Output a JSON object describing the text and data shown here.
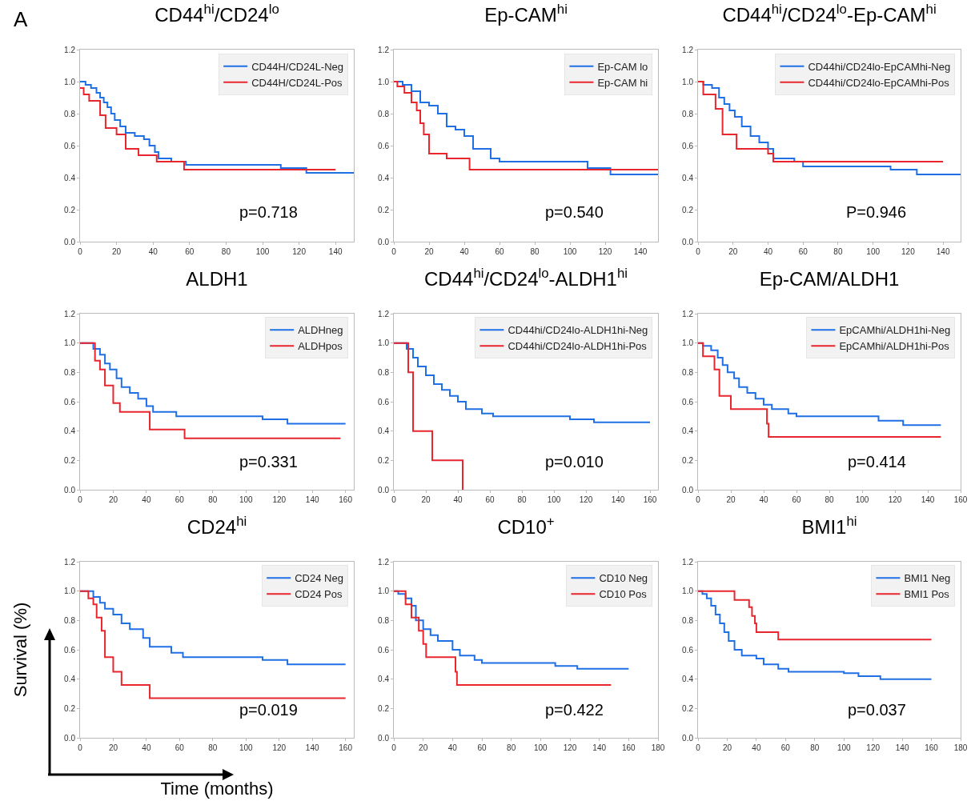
{
  "chart_data": [
    {
      "type": "step",
      "title": "CD44$^{hi}$/CD24$^{lo}$",
      "annotations": [
        "A",
        "p=0.718"
      ],
      "xlim": [
        0,
        150
      ],
      "xticks": [
        0,
        20,
        40,
        60,
        80,
        100,
        120,
        140
      ],
      "ylim": [
        0,
        1.2
      ],
      "yticks": [
        {
          "value": 0,
          "label": "0.0"
        },
        {
          "value": 0.2,
          "label": "0.2"
        },
        {
          "value": 0.4,
          "label": "0.4"
        },
        {
          "value": 0.6,
          "label": "0.6"
        },
        {
          "value": 0.8,
          "label": "0.8"
        },
        {
          "value": 1,
          "label": "1.0"
        },
        {
          "value": 1.2,
          "label": "1.2"
        }
      ],
      "grid": false,
      "legend": "top right",
      "series": [
        {
          "name": "CD44H/CD24L-Neg",
          "color": "#1f6fe5",
          "x": [
            0,
            3,
            6,
            9,
            11,
            13,
            15,
            17,
            19,
            22,
            25,
            30,
            35,
            38,
            41,
            43,
            50,
            58,
            110,
            124,
            150
          ],
          "values": [
            1.0,
            0.98,
            0.96,
            0.93,
            0.9,
            0.87,
            0.84,
            0.8,
            0.76,
            0.72,
            0.68,
            0.66,
            0.64,
            0.6,
            0.56,
            0.52,
            0.5,
            0.48,
            0.46,
            0.43,
            0.43
          ]
        },
        {
          "name": "CD44H/CD24L-Pos",
          "color": "#e8262e",
          "x": [
            0,
            2,
            5,
            11,
            14,
            20,
            25,
            32,
            42,
            57,
            140
          ],
          "values": [
            0.96,
            0.92,
            0.88,
            0.79,
            0.71,
            0.67,
            0.58,
            0.54,
            0.5,
            0.45,
            0.45
          ]
        }
      ]
    },
    {
      "type": "step",
      "title": "Ep-CAM$^{hi}$",
      "annotations": [
        "p=0.540"
      ],
      "xlim": [
        0,
        150
      ],
      "xticks": [
        0,
        20,
        40,
        60,
        80,
        100,
        120,
        140
      ],
      "ylim": [
        0,
        1.2
      ],
      "yticks": [
        {
          "value": 0,
          "label": "0.0"
        },
        {
          "value": 0.2,
          "label": "0.2"
        },
        {
          "value": 0.4,
          "label": "0.4"
        },
        {
          "value": 0.6,
          "label": "0.6"
        },
        {
          "value": 0.8,
          "label": "0.8"
        },
        {
          "value": 1,
          "label": "1.0"
        },
        {
          "value": 1.2,
          "label": "1.2"
        }
      ],
      "grid": false,
      "legend": "top right",
      "series": [
        {
          "name": "Ep-CAM lo",
          "color": "#1f6fe5",
          "x": [
            0,
            5,
            10,
            15,
            20,
            25,
            30,
            35,
            40,
            45,
            55,
            60,
            110,
            123,
            150
          ],
          "values": [
            1.0,
            0.98,
            0.94,
            0.87,
            0.85,
            0.8,
            0.72,
            0.7,
            0.66,
            0.58,
            0.52,
            0.5,
            0.46,
            0.42,
            0.42
          ]
        },
        {
          "name": "Ep-CAM hi",
          "color": "#e8262e",
          "x": [
            0,
            2,
            6,
            10,
            13,
            15,
            17,
            20,
            30,
            43,
            150
          ],
          "values": [
            1.0,
            0.97,
            0.93,
            0.87,
            0.82,
            0.74,
            0.67,
            0.55,
            0.52,
            0.45,
            0.45
          ]
        }
      ]
    },
    {
      "type": "step",
      "title": "CD44$^{hi}$/CD24$^{lo}$-Ep-CAM$^{hi}$",
      "annotations": [
        "P=0.946"
      ],
      "xlim": [
        0,
        150
      ],
      "xticks": [
        0,
        20,
        40,
        60,
        80,
        100,
        120,
        140
      ],
      "ylim": [
        0,
        1.2
      ],
      "yticks": [
        {
          "value": 0,
          "label": "0.0"
        },
        {
          "value": 0.2,
          "label": "0.2"
        },
        {
          "value": 0.4,
          "label": "0.4"
        },
        {
          "value": 0.6,
          "label": "0.6"
        },
        {
          "value": 0.8,
          "label": "0.8"
        },
        {
          "value": 1,
          "label": "1.0"
        },
        {
          "value": 1.2,
          "label": "1.2"
        }
      ],
      "grid": false,
      "legend": "top right",
      "series": [
        {
          "name": "CD44hi/CD24lo-EpCAMhi-Neg",
          "color": "#1f6fe5",
          "x": [
            0,
            3,
            8,
            12,
            15,
            18,
            21,
            25,
            30,
            35,
            40,
            43,
            55,
            60,
            110,
            125,
            150
          ],
          "values": [
            1.0,
            0.98,
            0.96,
            0.9,
            0.86,
            0.82,
            0.78,
            0.72,
            0.66,
            0.62,
            0.58,
            0.52,
            0.5,
            0.47,
            0.45,
            0.42,
            0.42
          ]
        },
        {
          "name": "CD44hi/CD24lo-EpCAMhi-Pos",
          "color": "#e8262e",
          "x": [
            0,
            3,
            10,
            14,
            22,
            40,
            43,
            140
          ],
          "values": [
            1.0,
            0.92,
            0.83,
            0.67,
            0.58,
            0.55,
            0.5,
            0.5
          ]
        }
      ]
    },
    {
      "type": "step",
      "title": "ALDH1",
      "annotations": [
        "p=0.331"
      ],
      "xlim": [
        0,
        165
      ],
      "xticks": [
        0,
        20,
        40,
        60,
        80,
        100,
        120,
        140,
        160
      ],
      "ylim": [
        0,
        1.2
      ],
      "yticks": [
        {
          "value": 0,
          "label": "0.0"
        },
        {
          "value": 0.2,
          "label": "0.2"
        },
        {
          "value": 0.4,
          "label": "0.4"
        },
        {
          "value": 0.6,
          "label": "0.6"
        },
        {
          "value": 0.8,
          "label": "0.8"
        },
        {
          "value": 1,
          "label": "1.0"
        },
        {
          "value": 1.2,
          "label": "1.2"
        }
      ],
      "grid": false,
      "legend": "top right",
      "series": [
        {
          "name": "ALDHneg",
          "color": "#1f6fe5",
          "x": [
            0,
            8,
            12,
            15,
            18,
            22,
            25,
            30,
            35,
            40,
            44,
            58,
            110,
            125,
            160
          ],
          "values": [
            1.0,
            0.96,
            0.92,
            0.86,
            0.82,
            0.76,
            0.7,
            0.66,
            0.62,
            0.57,
            0.53,
            0.5,
            0.48,
            0.45,
            0.45
          ]
        },
        {
          "name": "ALDHpos",
          "color": "#e8262e",
          "x": [
            0,
            9,
            12,
            15,
            20,
            24,
            42,
            63,
            157
          ],
          "values": [
            1.0,
            0.88,
            0.82,
            0.71,
            0.59,
            0.53,
            0.41,
            0.35,
            0.35
          ]
        }
      ]
    },
    {
      "type": "step",
      "title": "CD44$^{hi}$/CD24$^{lo}$-ALDH1$^{hi}$",
      "annotations": [
        "p=0.010"
      ],
      "xlim": [
        0,
        165
      ],
      "xticks": [
        0,
        20,
        40,
        60,
        80,
        100,
        120,
        140,
        160
      ],
      "ylim": [
        0,
        1.2
      ],
      "yticks": [
        {
          "value": 0,
          "label": "0.0"
        },
        {
          "value": 0.2,
          "label": "0.2"
        },
        {
          "value": 0.4,
          "label": "0.4"
        },
        {
          "value": 0.6,
          "label": "0.6"
        },
        {
          "value": 0.8,
          "label": "0.8"
        },
        {
          "value": 1,
          "label": "1.0"
        },
        {
          "value": 1.2,
          "label": "1.2"
        }
      ],
      "grid": false,
      "legend": "top right",
      "series": [
        {
          "name": "CD44hi/CD24lo-ALDH1hi-Neg",
          "color": "#1f6fe5",
          "x": [
            0,
            8,
            12,
            15,
            20,
            25,
            30,
            35,
            40,
            45,
            55,
            62,
            110,
            125,
            160
          ],
          "values": [
            1.0,
            0.96,
            0.9,
            0.84,
            0.78,
            0.72,
            0.68,
            0.64,
            0.6,
            0.55,
            0.52,
            0.5,
            0.48,
            0.46,
            0.46
          ]
        },
        {
          "name": "CD44hi/CD24lo-ALDH1hi-Pos",
          "color": "#e8262e",
          "x": [
            0,
            9,
            12,
            24,
            43
          ],
          "values": [
            1.0,
            0.8,
            0.4,
            0.2,
            0.0
          ]
        }
      ]
    },
    {
      "type": "step",
      "title": "Ep-CAM/ALDH1",
      "annotations": [
        "p=0.414"
      ],
      "xlim": [
        0,
        160
      ],
      "xticks": [
        0,
        20,
        40,
        60,
        80,
        100,
        120,
        140,
        160
      ],
      "ylim": [
        0,
        1.2
      ],
      "yticks": [
        {
          "value": 0,
          "label": "0.0"
        },
        {
          "value": 0.2,
          "label": "0.2"
        },
        {
          "value": 0.4,
          "label": "0.4"
        },
        {
          "value": 0.6,
          "label": "0.6"
        },
        {
          "value": 0.8,
          "label": "0.8"
        },
        {
          "value": 1,
          "label": "1.0"
        },
        {
          "value": 1.2,
          "label": "1.2"
        }
      ],
      "grid": false,
      "legend": "top right",
      "series": [
        {
          "name": "EpCAMhi/ALDH1hi-Neg",
          "color": "#1f6fe5",
          "x": [
            0,
            3,
            8,
            12,
            15,
            18,
            22,
            25,
            30,
            35,
            40,
            45,
            55,
            60,
            110,
            125,
            148
          ],
          "values": [
            1.0,
            0.98,
            0.95,
            0.9,
            0.85,
            0.8,
            0.76,
            0.7,
            0.66,
            0.62,
            0.58,
            0.55,
            0.52,
            0.5,
            0.47,
            0.44,
            0.44
          ]
        },
        {
          "name": "EpCAMhi/ALDH1hi-Pos",
          "color": "#e8262e",
          "x": [
            0,
            3,
            10,
            13,
            20,
            42,
            43,
            148
          ],
          "values": [
            1.0,
            0.91,
            0.82,
            0.64,
            0.55,
            0.45,
            0.36,
            0.36
          ]
        }
      ]
    },
    {
      "type": "step",
      "title": "CD24$^{hi}$",
      "xlabel": "Time (months)",
      "ylabel": "Survival (%)",
      "annotations": [
        "p=0.019"
      ],
      "xlim": [
        0,
        165
      ],
      "xticks": [
        0,
        20,
        40,
        60,
        80,
        100,
        120,
        140,
        160
      ],
      "ylim": [
        0,
        1.2
      ],
      "yticks": [
        {
          "value": 0,
          "label": "0.0"
        },
        {
          "value": 0.2,
          "label": "0.2"
        },
        {
          "value": 0.4,
          "label": "0.4"
        },
        {
          "value": 0.6,
          "label": "0.6"
        },
        {
          "value": 0.8,
          "label": "0.8"
        },
        {
          "value": 1,
          "label": "1.0"
        },
        {
          "value": 1.2,
          "label": "1.2"
        }
      ],
      "grid": false,
      "legend": "top right",
      "series": [
        {
          "name": "CD24 Neg",
          "color": "#1f6fe5",
          "x": [
            0,
            8,
            12,
            15,
            20,
            25,
            30,
            38,
            42,
            55,
            62,
            110,
            125,
            160
          ],
          "values": [
            1.0,
            0.96,
            0.92,
            0.88,
            0.84,
            0.78,
            0.74,
            0.68,
            0.62,
            0.58,
            0.55,
            0.53,
            0.5,
            0.5
          ]
        },
        {
          "name": "CD24 Pos",
          "color": "#e8262e",
          "x": [
            0,
            5,
            8,
            10,
            13,
            15,
            20,
            25,
            42,
            160
          ],
          "values": [
            1.0,
            0.95,
            0.91,
            0.82,
            0.73,
            0.55,
            0.45,
            0.36,
            0.27,
            0.27
          ]
        }
      ]
    },
    {
      "type": "step",
      "title": "CD10$^{+}$",
      "annotations": [
        "p=0.422"
      ],
      "xlim": [
        0,
        180
      ],
      "xticks": [
        0,
        20,
        40,
        60,
        80,
        100,
        120,
        140,
        160,
        180
      ],
      "ylim": [
        0,
        1.2
      ],
      "yticks": [
        {
          "value": 0,
          "label": "0.0"
        },
        {
          "value": 0.2,
          "label": "0.2"
        },
        {
          "value": 0.4,
          "label": "0.4"
        },
        {
          "value": 0.6,
          "label": "0.6"
        },
        {
          "value": 0.8,
          "label": "0.8"
        },
        {
          "value": 1,
          "label": "1.0"
        },
        {
          "value": 1.2,
          "label": "1.2"
        }
      ],
      "grid": false,
      "legend": "top right",
      "series": [
        {
          "name": "CD10 Neg",
          "color": "#1f6fe5",
          "x": [
            0,
            3,
            8,
            12,
            15,
            20,
            25,
            30,
            40,
            45,
            55,
            60,
            110,
            125,
            160
          ],
          "values": [
            1.0,
            0.98,
            0.95,
            0.9,
            0.8,
            0.74,
            0.7,
            0.66,
            0.6,
            0.56,
            0.53,
            0.51,
            0.49,
            0.47,
            0.47
          ]
        },
        {
          "name": "CD10 Pos",
          "color": "#e8262e",
          "x": [
            0,
            8,
            12,
            17,
            20,
            22,
            42,
            43,
            148
          ],
          "values": [
            1.0,
            0.91,
            0.82,
            0.73,
            0.64,
            0.55,
            0.45,
            0.36,
            0.36
          ]
        }
      ]
    },
    {
      "type": "step",
      "title": "BMI1$^{hi}$",
      "annotations": [
        "p=0.037"
      ],
      "xlim": [
        0,
        180
      ],
      "xticks": [
        0,
        20,
        40,
        60,
        80,
        100,
        120,
        140,
        160,
        180
      ],
      "ylim": [
        0,
        1.2
      ],
      "yticks": [
        {
          "value": 0,
          "label": "0.0"
        },
        {
          "value": 0.2,
          "label": "0.2"
        },
        {
          "value": 0.4,
          "label": "0.4"
        },
        {
          "value": 0.6,
          "label": "0.6"
        },
        {
          "value": 0.8,
          "label": "0.8"
        },
        {
          "value": 1,
          "label": "1.0"
        },
        {
          "value": 1.2,
          "label": "1.2"
        }
      ],
      "grid": false,
      "legend": "top right",
      "series": [
        {
          "name": "BMI1 Neg",
          "color": "#1f6fe5",
          "x": [
            0,
            3,
            6,
            9,
            12,
            15,
            18,
            21,
            25,
            30,
            40,
            45,
            55,
            62,
            100,
            110,
            125,
            160
          ],
          "values": [
            1.0,
            0.98,
            0.95,
            0.9,
            0.84,
            0.78,
            0.72,
            0.66,
            0.6,
            0.56,
            0.54,
            0.5,
            0.47,
            0.45,
            0.44,
            0.42,
            0.4,
            0.4
          ]
        },
        {
          "name": "BMI1 Pos",
          "color": "#e8262e",
          "x": [
            0,
            25,
            35,
            37,
            39,
            40,
            55,
            160
          ],
          "values": [
            1.0,
            0.94,
            0.89,
            0.83,
            0.78,
            0.72,
            0.67,
            0.67
          ]
        }
      ]
    }
  ]
}
